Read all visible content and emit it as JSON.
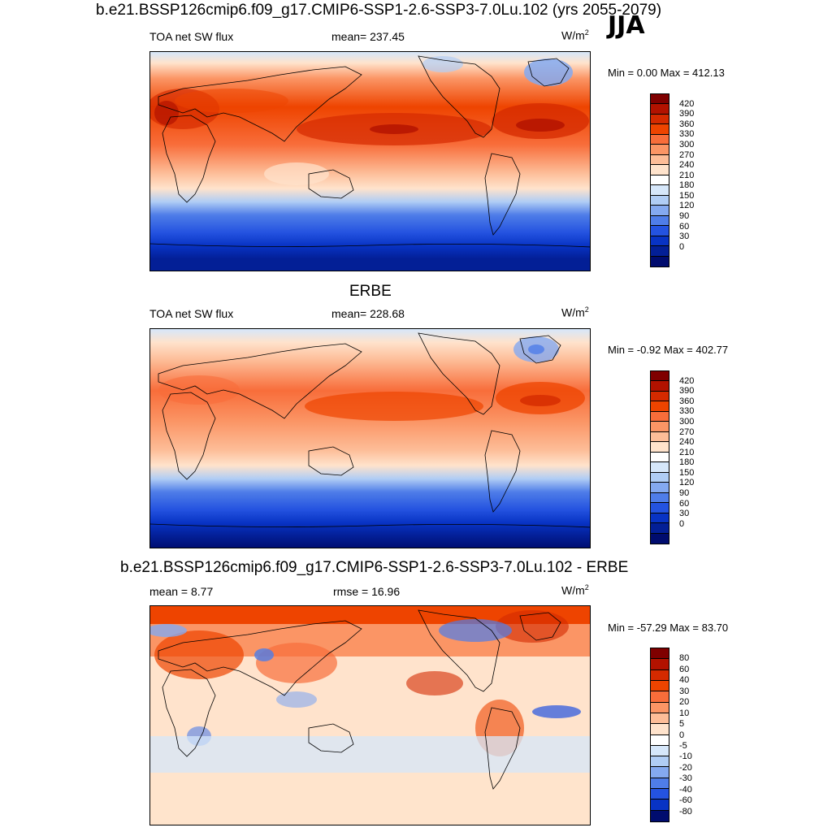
{
  "season": "JJA",
  "panels": [
    {
      "id": "model",
      "title": "b.e21.BSSP126cmip6.f09_g17.CMIP6-SSP1-2.6-SSP3-7.0Lu.102 (yrs 2055-2079)",
      "left_label": "TOA net SW flux",
      "center_label": "mean= 237.45",
      "unit": "W/m",
      "unit_sup": "2",
      "minmax": "Min =   0.00 Max = 412.13",
      "colorbar": {
        "colors": [
          "#7f0000",
          "#b21200",
          "#d42a00",
          "#ee4400",
          "#f86d3a",
          "#fb9565",
          "#fdbd98",
          "#ffe3cc",
          "#ffffff",
          "#d6e7fa",
          "#b0cdf5",
          "#84a9f0",
          "#4f7de8",
          "#2453e0",
          "#0833c4",
          "#031f96",
          "#000c6e"
        ],
        "ticks": [
          "420",
          "390",
          "360",
          "330",
          "300",
          "270",
          "240",
          "210",
          "180",
          "150",
          "120",
          "90",
          "60",
          "30",
          "0"
        ]
      }
    },
    {
      "id": "obs",
      "title": "ERBE",
      "left_label": "TOA net SW flux",
      "center_label": "mean= 228.68",
      "unit": "W/m",
      "unit_sup": "2",
      "minmax": "Min =  -0.92 Max = 402.77",
      "colorbar": {
        "colors": [
          "#7f0000",
          "#b21200",
          "#d42a00",
          "#ee4400",
          "#f86d3a",
          "#fb9565",
          "#fdbd98",
          "#ffe3cc",
          "#ffffff",
          "#d6e7fa",
          "#b0cdf5",
          "#84a9f0",
          "#4f7de8",
          "#2453e0",
          "#0833c4",
          "#031f96",
          "#000c6e"
        ],
        "ticks": [
          "420",
          "390",
          "360",
          "330",
          "300",
          "270",
          "240",
          "210",
          "180",
          "150",
          "120",
          "90",
          "60",
          "30",
          "0"
        ]
      }
    },
    {
      "id": "diff",
      "title": "b.e21.BSSP126cmip6.f09_g17.CMIP6-SSP1-2.6-SSP3-7.0Lu.102 - ERBE",
      "left_label": "mean =   8.77",
      "center_label": "rmse =  16.96",
      "unit": "W/m",
      "unit_sup": "2",
      "minmax": "Min = -57.29 Max =  83.70",
      "colorbar": {
        "colors": [
          "#7f0000",
          "#b21200",
          "#d42a00",
          "#ee4400",
          "#f86d3a",
          "#fb9565",
          "#fdbd98",
          "#ffe3cc",
          "#ffffff",
          "#d6e7fa",
          "#b0cdf5",
          "#84a9f0",
          "#4f7de8",
          "#2453e0",
          "#0833c4",
          "#000c6e"
        ],
        "ticks": [
          "80",
          "60",
          "40",
          "30",
          "20",
          "10",
          "5",
          "0",
          "-5",
          "-10",
          "-20",
          "-30",
          "-40",
          "-60",
          "-80"
        ]
      }
    }
  ]
}
